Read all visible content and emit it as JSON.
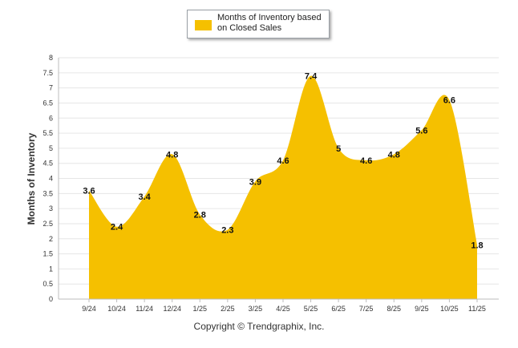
{
  "chart_data": {
    "type": "area",
    "categories": [
      "9/24",
      "10/24",
      "11/24",
      "12/24",
      "1/25",
      "2/25",
      "3/25",
      "4/25",
      "5/25",
      "6/25",
      "7/25",
      "8/25",
      "9/25",
      "10/25",
      "11/25"
    ],
    "values": [
      3.6,
      2.4,
      3.4,
      4.8,
      2.8,
      2.3,
      3.9,
      4.6,
      7.4,
      5,
      4.6,
      4.8,
      5.6,
      6.6,
      1.8
    ],
    "value_labels": [
      "3.6",
      "2.4",
      "3.4",
      "4.8",
      "2.8",
      "2.3",
      "3.9",
      "4.6",
      "7.4",
      "5",
      "4.6",
      "4.8",
      "5.6",
      "6.6",
      "1.8"
    ],
    "ylabel": "Months of Inventory",
    "xlabel": "",
    "ylim": [
      0,
      8
    ],
    "yticks": [
      "0",
      "0.5",
      "1",
      "1.5",
      "2",
      "2.5",
      "3",
      "3.5",
      "4",
      "4.5",
      "5",
      "5.5",
      "6",
      "6.5",
      "7",
      "7.5",
      "8"
    ],
    "grid": true,
    "legend": {
      "label": "Months of Inventory based on Closed Sales",
      "placement": "top-center"
    },
    "color": "#f5c000"
  },
  "footer": {
    "copyright": "Copyright © Trendgraphix, Inc."
  }
}
